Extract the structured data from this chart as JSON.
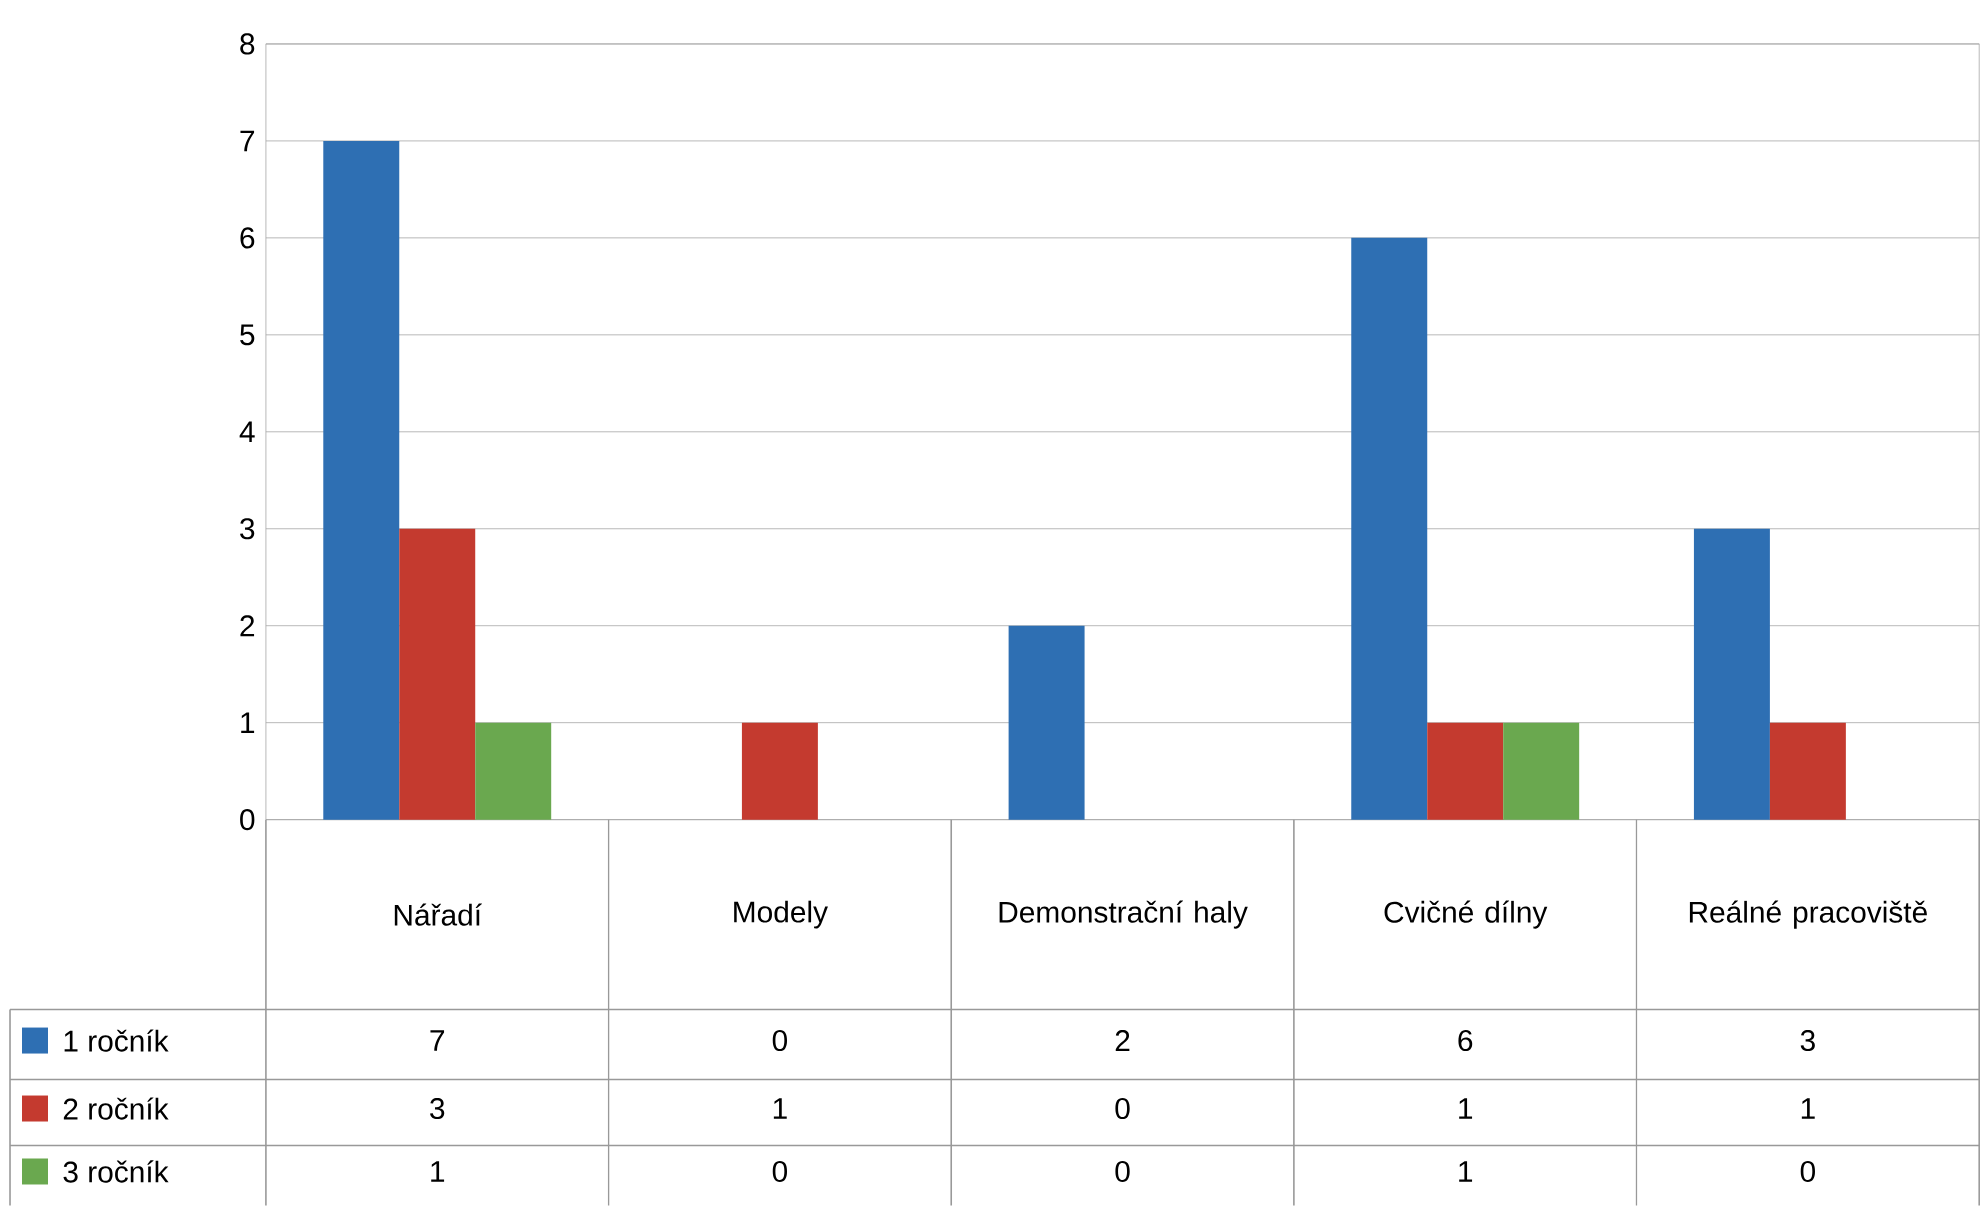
{
  "chart_data": {
    "type": "bar",
    "categories": [
      "Nářadí",
      "Modely",
      "Demonstrační haly",
      "Cvičné dílny",
      "Reálné pracoviště"
    ],
    "series": [
      {
        "name": "1 ročník",
        "color": "#2e6fb3",
        "values": [
          7,
          0,
          2,
          6,
          3
        ]
      },
      {
        "name": "2 ročník",
        "color": "#c43a2f",
        "values": [
          3,
          1,
          0,
          1,
          1
        ]
      },
      {
        "name": "3 ročník",
        "color": "#6aa84f",
        "values": [
          1,
          0,
          0,
          1,
          0
        ]
      }
    ],
    "ylim": [
      0,
      8
    ],
    "yticks": [
      0,
      1,
      2,
      3,
      4,
      5,
      6,
      7,
      8
    ],
    "grid": "y",
    "legend": "bottom",
    "data_labels": true
  }
}
